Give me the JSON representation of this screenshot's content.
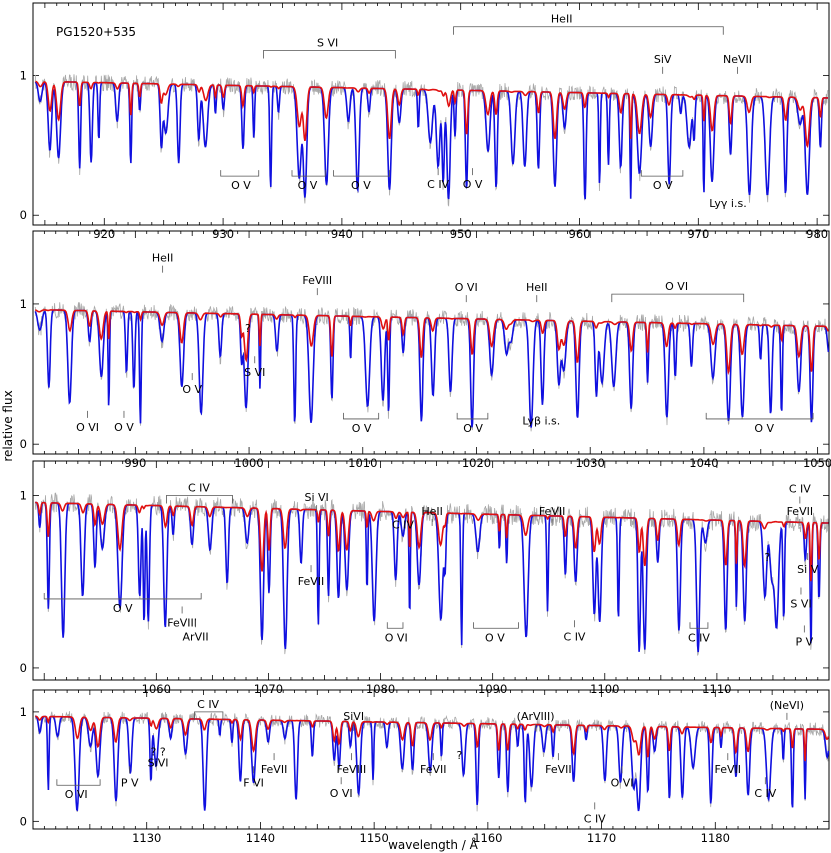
{
  "figure": {
    "object_label": "PG1520+535",
    "xlabel": "wavelength / Å",
    "ylabel": "relative flux"
  },
  "chart_data": [
    {
      "type": "line",
      "xlim": [
        914,
        981
      ],
      "ylim": [
        -0.07,
        1.52
      ],
      "x_ticks": [
        920,
        930,
        940,
        950,
        960,
        970,
        980
      ],
      "y_ticks": [
        0,
        1
      ],
      "series": [],
      "annotations": [
        {
          "label": "S VI",
          "x": 938.8,
          "level": 1.18,
          "x1": 933.4,
          "x2": 944.5,
          "kind": "bracket_top"
        },
        {
          "label": "HeII",
          "x": 958.5,
          "level": 1.35,
          "x1": 949.4,
          "x2": 972.1,
          "kind": "bracket_top"
        },
        {
          "label": "SiV",
          "x": 967.0,
          "level": 1.07,
          "kind": "marker_top"
        },
        {
          "label": "NeVII",
          "x": 973.3,
          "level": 1.07,
          "kind": "marker_top"
        },
        {
          "label": "O V",
          "x": 931.5,
          "level": 0.28,
          "x1": 929.8,
          "x2": 933.0,
          "kind": "bracket_bottom"
        },
        {
          "label": "O V",
          "x": 937.1,
          "level": 0.28,
          "x1": 935.8,
          "x2": 938.6,
          "kind": "bracket_bottom"
        },
        {
          "label": "O V",
          "x": 941.6,
          "level": 0.28,
          "x1": 939.3,
          "x2": 944.0,
          "kind": "bracket_bottom"
        },
        {
          "label": "C IV",
          "x": 948.1,
          "level": 0.28,
          "kind": "marker_bottom"
        },
        {
          "label": "O V",
          "x": 951.0,
          "level": 0.28,
          "kind": "marker_bottom"
        },
        {
          "label": "O V",
          "x": 967.0,
          "level": 0.28,
          "x1": 965.2,
          "x2": 968.7,
          "kind": "bracket_bottom"
        },
        {
          "label": "Lyγ i.s.",
          "x": 972.5,
          "level": 0.06,
          "kind": "text"
        }
      ]
    },
    {
      "type": "line",
      "xlim": [
        981,
        1051
      ],
      "ylim": [
        -0.07,
        1.52
      ],
      "x_ticks": [
        990,
        1000,
        1010,
        1020,
        1030,
        1040,
        1050
      ],
      "y_ticks": [
        0,
        1
      ],
      "series": [],
      "annotations": [
        {
          "label": "HeII",
          "x": 992.4,
          "level": 1.28,
          "kind": "marker_top"
        },
        {
          "label": "FeVIII",
          "x": 1006.0,
          "level": 1.12,
          "kind": "marker_top"
        },
        {
          "label": "O VI",
          "x": 1019.1,
          "level": 1.07,
          "kind": "marker_top"
        },
        {
          "label": "HeII",
          "x": 1025.3,
          "level": 1.07,
          "kind": "marker_top"
        },
        {
          "label": "O VI",
          "x": 1037.6,
          "level": 1.07,
          "x1": 1031.9,
          "x2": 1043.5,
          "kind": "bracket_top"
        },
        {
          "label": "?",
          "x": 999.9,
          "level": 0.8,
          "kind": "text"
        },
        {
          "label": "S VI",
          "x": 1000.5,
          "level": 0.57,
          "kind": "marker_bottom"
        },
        {
          "label": "O V",
          "x": 995.0,
          "level": 0.45,
          "kind": "marker_bottom"
        },
        {
          "label": "O VI",
          "x": 985.8,
          "level": 0.18,
          "kind": "marker_bottom"
        },
        {
          "label": "O V",
          "x": 989.0,
          "level": 0.18,
          "kind": "marker_bottom"
        },
        {
          "label": "O V",
          "x": 1009.9,
          "level": 0.18,
          "x1": 1008.3,
          "x2": 1011.4,
          "kind": "bracket_bottom"
        },
        {
          "label": "O V",
          "x": 1019.7,
          "level": 0.18,
          "x1": 1018.3,
          "x2": 1021.0,
          "kind": "bracket_bottom"
        },
        {
          "label": "Lyβ i.s.",
          "x": 1025.7,
          "level": 0.14,
          "kind": "text"
        },
        {
          "label": "O V",
          "x": 1045.3,
          "level": 0.18,
          "x1": 1040.2,
          "x2": 1049.6,
          "kind": "bracket_bottom"
        }
      ]
    },
    {
      "type": "line",
      "xlim": [
        1049,
        1120
      ],
      "ylim": [
        -0.07,
        1.2
      ],
      "x_ticks": [
        1060,
        1070,
        1080,
        1090,
        1100,
        1110
      ],
      "y_ticks": [
        0,
        1
      ],
      "series": [],
      "annotations": [
        {
          "label": "C IV",
          "x": 1063.8,
          "level": 1.0,
          "x1": 1060.9,
          "x2": 1066.8,
          "kind": "bracket_top"
        },
        {
          "label": "Si VI",
          "x": 1074.3,
          "level": 0.95,
          "kind": "marker_top"
        },
        {
          "label": "HeII",
          "x": 1084.6,
          "level": 0.87,
          "kind": "marker_top"
        },
        {
          "label": "C IV",
          "x": 1082.0,
          "level": 0.81,
          "kind": "text"
        },
        {
          "label": "FeVII",
          "x": 1095.3,
          "level": 0.87,
          "kind": "marker_top"
        },
        {
          "label": "C IV",
          "x": 1117.4,
          "level": 1.0,
          "kind": "marker_top"
        },
        {
          "label": "FeVII",
          "x": 1117.4,
          "level": 0.87,
          "kind": "marker_top"
        },
        {
          "label": "FeVII",
          "x": 1073.8,
          "level": 0.55,
          "kind": "marker_bottom"
        },
        {
          "label": "?",
          "x": 1114.5,
          "level": 0.62,
          "kind": "text"
        },
        {
          "label": "Si V",
          "x": 1118.1,
          "level": 0.62,
          "kind": "marker_bottom"
        },
        {
          "label": "S VI",
          "x": 1117.5,
          "level": 0.42,
          "kind": "marker_bottom"
        },
        {
          "label": "P V",
          "x": 1117.8,
          "level": 0.2,
          "kind": "marker_bottom"
        },
        {
          "label": "O V",
          "x": 1057.0,
          "level": 0.4,
          "x1": 1050.0,
          "x2": 1064.0,
          "kind": "bracket_bottom"
        },
        {
          "label": "FeVIII",
          "x": 1062.3,
          "level": 0.31,
          "kind": "marker_bottom"
        },
        {
          "label": "ArVII",
          "x": 1063.5,
          "level": 0.23,
          "kind": "marker_bottom"
        },
        {
          "label": "O VI",
          "x": 1081.4,
          "level": 0.23,
          "x1": 1080.6,
          "x2": 1082.0,
          "kind": "bracket_bottom"
        },
        {
          "label": "O V",
          "x": 1090.2,
          "level": 0.23,
          "x1": 1088.3,
          "x2": 1092.3,
          "kind": "bracket_bottom"
        },
        {
          "label": "C IV",
          "x": 1097.3,
          "level": 0.23,
          "kind": "marker_bottom"
        },
        {
          "label": "C IV",
          "x": 1108.4,
          "level": 0.23,
          "x1": 1107.6,
          "x2": 1109.2,
          "kind": "bracket_bottom"
        }
      ]
    },
    {
      "type": "line",
      "xlim": [
        1120,
        1190
      ],
      "ylim": [
        -0.07,
        1.2
      ],
      "x_ticks": [
        1130,
        1140,
        1150,
        1160,
        1170,
        1180
      ],
      "y_ticks": [
        0,
        1
      ],
      "series": [],
      "annotations": [
        {
          "label": "C IV",
          "x": 1135.4,
          "level": 1.0,
          "x1": 1134.2,
          "x2": 1136.7,
          "kind": "bracket_top"
        },
        {
          "label": "SiVI",
          "x": 1148.2,
          "level": 0.9,
          "kind": "marker_top"
        },
        {
          "label": "(ArVIII)",
          "x": 1164.2,
          "level": 0.9,
          "kind": "marker_top"
        },
        {
          "label": "(NeVI)",
          "x": 1186.3,
          "level": 1.0,
          "kind": "marker_top"
        },
        {
          "label": "? ?",
          "x": 1131.0,
          "level": 0.6,
          "kind": "text"
        },
        {
          "label": "SiVI",
          "x": 1131.0,
          "level": 0.5,
          "kind": "text"
        },
        {
          "label": "?",
          "x": 1157.5,
          "level": 0.57,
          "kind": "text"
        },
        {
          "label": "FeVII",
          "x": 1141.2,
          "level": 0.55,
          "kind": "marker_bottom"
        },
        {
          "label": "F VI",
          "x": 1139.4,
          "level": 0.43,
          "kind": "marker_bottom"
        },
        {
          "label": "FeVIII",
          "x": 1148.0,
          "level": 0.55,
          "kind": "marker_bottom"
        },
        {
          "label": "FeVII",
          "x": 1155.2,
          "level": 0.55,
          "kind": "marker_bottom"
        },
        {
          "label": "FeVII",
          "x": 1166.2,
          "level": 0.55,
          "kind": "marker_bottom"
        },
        {
          "label": "FeVII",
          "x": 1181.1,
          "level": 0.55,
          "kind": "marker_bottom"
        },
        {
          "label": "O VI",
          "x": 1147.1,
          "level": 0.33,
          "kind": "marker_bottom"
        },
        {
          "label": "O VI",
          "x": 1123.8,
          "level": 0.33,
          "x1": 1122.1,
          "x2": 1125.9,
          "kind": "bracket_bottom"
        },
        {
          "label": "P V",
          "x": 1128.5,
          "level": 0.43,
          "kind": "marker_bottom"
        },
        {
          "label": "O VI",
          "x": 1171.8,
          "level": 0.43,
          "kind": "marker_bottom"
        },
        {
          "label": "C IV",
          "x": 1169.4,
          "level": 0.1,
          "kind": "marker_bottom"
        },
        {
          "label": "C IV",
          "x": 1184.4,
          "level": 0.33,
          "kind": "marker_bottom"
        }
      ]
    }
  ]
}
